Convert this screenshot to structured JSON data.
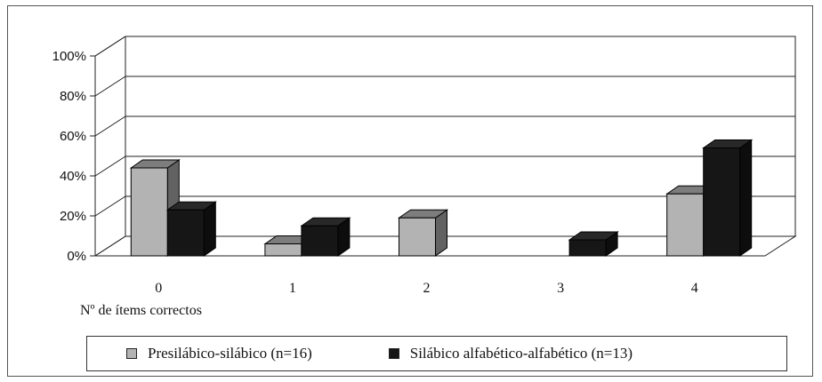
{
  "chart_data": {
    "type": "bar",
    "three_d": true,
    "categories": [
      "0",
      "1",
      "2",
      "3",
      "4"
    ],
    "series": [
      {
        "name": "Presilábico-silábico (n=16)",
        "values": [
          44,
          6,
          19,
          0,
          31
        ],
        "color": "#b3b3b3"
      },
      {
        "name": "Silábico alfabético-alfabético (n=13)",
        "values": [
          23,
          15,
          0,
          8,
          54
        ],
        "color": "#161616"
      }
    ],
    "xlabel": "Nº de ítems correctos",
    "ylabel": "",
    "ylim": [
      0,
      100
    ],
    "yticks": [
      "0%",
      "20%",
      "40%",
      "60%",
      "80%",
      "100%"
    ],
    "grid": true,
    "legend_position": "bottom"
  }
}
